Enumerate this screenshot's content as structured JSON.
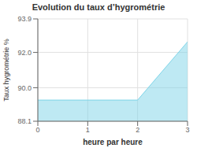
{
  "chart_data": {
    "type": "area",
    "title": "Evolution du taux d’hygrométrie",
    "xlabel": "heure par heure",
    "ylabel": "Taux hygrométrie %",
    "x": [
      0,
      2,
      3
    ],
    "values": [
      89.3,
      89.3,
      92.6
    ],
    "color": "#7dd4e8",
    "xlim": [
      0,
      3
    ],
    "ylim": [
      88.1,
      93.9
    ],
    "xticks": [
      0,
      1,
      2,
      3
    ],
    "yticks": [
      88.1,
      {
        "value": 90,
        "label": "90.0"
      },
      {
        "value": 92,
        "label": "92.0"
      },
      93.9
    ],
    "grid": true
  }
}
